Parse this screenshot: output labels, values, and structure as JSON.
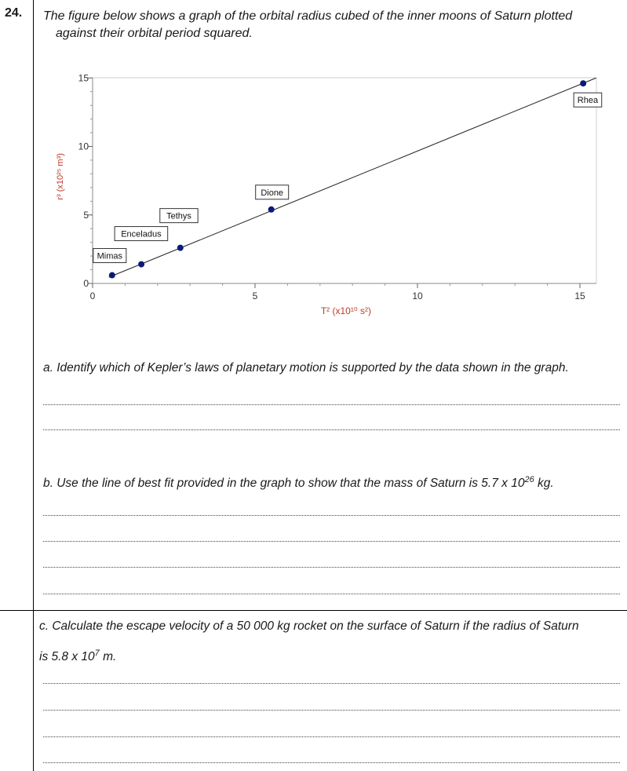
{
  "question": {
    "number": "24.",
    "intro_line1": "The figure below shows a graph of the orbital radius cubed of the inner moons of Saturn plotted",
    "intro_line2": "against their orbital period squared."
  },
  "chart_data": {
    "type": "scatter",
    "title": "",
    "xlabel": "T² (x10¹⁰ s²)",
    "ylabel": "r³ (x10²⁵ m³)",
    "xlim": [
      0,
      15.5
    ],
    "ylim": [
      0,
      15
    ],
    "x_ticks": [
      "0",
      "5",
      "10",
      "15"
    ],
    "y_ticks": [
      "0",
      "5",
      "10",
      "15"
    ],
    "grid": false,
    "series": [
      {
        "points": [
          {
            "label": "Mimas",
            "x": 0.6,
            "y": 0.6
          },
          {
            "label": "Enceladus",
            "x": 1.5,
            "y": 1.4
          },
          {
            "label": "Tethys",
            "x": 2.7,
            "y": 2.6
          },
          {
            "label": "Dione",
            "x": 5.5,
            "y": 5.4
          },
          {
            "label": "Rhea",
            "x": 15.1,
            "y": 14.6
          }
        ]
      }
    ],
    "best_fit_line": {
      "from": [
        0.5,
        0.45
      ],
      "to": [
        15.5,
        15.0
      ]
    },
    "colors": {
      "points": "#0b1a7a",
      "line": "#222222",
      "xlabel": "#c0392b"
    }
  },
  "parts": {
    "a": "a. Identify which of Kepler’s laws of planetary motion is supported by the data shown in the graph.",
    "b_pre": "b. Use the line of best fit provided in the graph to show that the mass of Saturn is 5.7 x 10",
    "b_sup": "26",
    "b_post": " kg.",
    "c_line1": "c. Calculate the escape velocity of a 50 000 kg rocket on the surface of Saturn if the radius of Saturn",
    "c_line2_pre": "is 5.8 x 10",
    "c_line2_sup": "7",
    "c_line2_post": " m."
  }
}
